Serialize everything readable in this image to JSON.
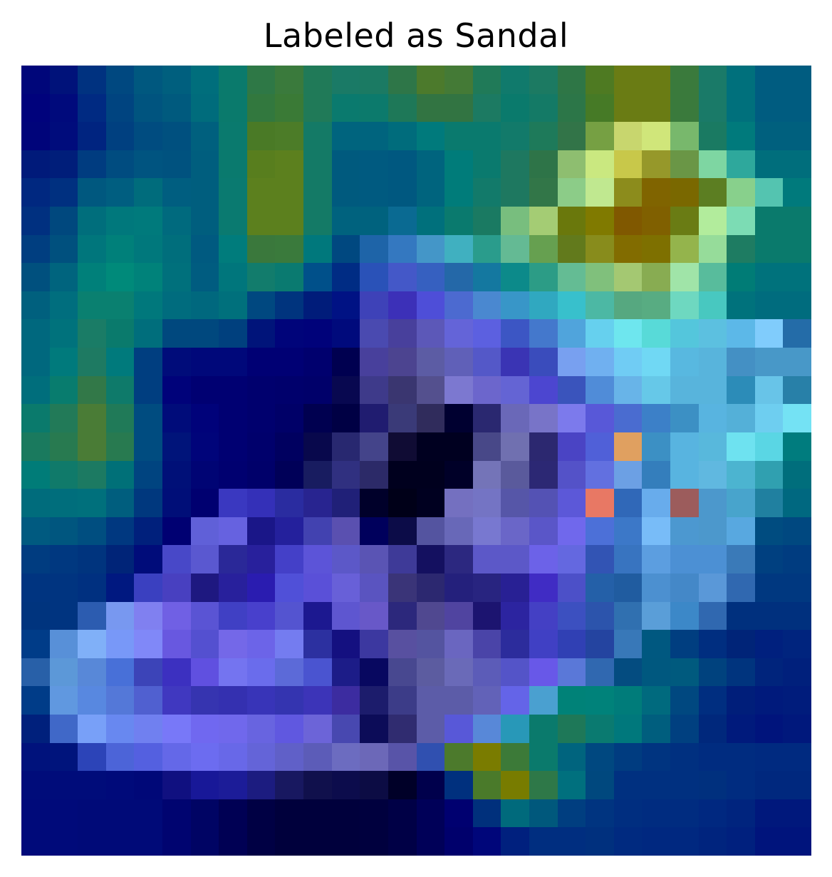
{
  "figure": {
    "title": "Labeled as Sandal",
    "image_description": "28x28 grayscale image overlaid with a saliency heatmap"
  },
  "heatmap": {
    "rows": 28,
    "cols": 28,
    "pixels": [
      [
        "#00067a",
        "#00127a",
        "#003280",
        "#004880",
        "#00587f",
        "#005f7e",
        "#006e7c",
        "#0a7a6c",
        "#2e7846",
        "#3a7a3c",
        "#207a58",
        "#1a7a66",
        "#1b7a63",
        "#2e7648",
        "#4c7a2c",
        "#447a36",
        "#207a58",
        "#107a6c",
        "#1c7a62",
        "#2e7646",
        "#4e7a22",
        "#6a7c14",
        "#6a7c14",
        "#3a7a3c",
        "#1a7a68",
        "#00707c",
        "#005c80",
        "#005c80"
      ],
      [
        "#00027c",
        "#000a7c",
        "#002a82",
        "#004480",
        "#00547f",
        "#005a7e",
        "#006c7c",
        "#0a7a6c",
        "#32783e",
        "#3a7a36",
        "#207a58",
        "#0a7a6e",
        "#0c7a6c",
        "#1e7858",
        "#327442",
        "#327442",
        "#1c7a62",
        "#0a7a6c",
        "#147a66",
        "#2c7648",
        "#467a26",
        "#6a7c14",
        "#6a7c14",
        "#3a7a3c",
        "#1a7a68",
        "#00707c",
        "#005c80",
        "#005c80"
      ],
      [
        "#00047a",
        "#000c7c",
        "#002480",
        "#004080",
        "#004c80",
        "#00507f",
        "#00607e",
        "#0a7a6e",
        "#4a7a26",
        "#4c7c28",
        "#147a66",
        "#00647e",
        "#00647e",
        "#006c7c",
        "#007a7c",
        "#0a7a6e",
        "#0a7a6e",
        "#127a6a",
        "#1e7a5a",
        "#327448",
        "#76a043",
        "#c8d66e",
        "#d0e67a",
        "#78b86c",
        "#1a7a62",
        "#007a7c",
        "#00607e",
        "#00607e"
      ],
      [
        "#001a7a",
        "#001e7a",
        "#003c80",
        "#004c80",
        "#005480",
        "#00527f",
        "#005e7e",
        "#0a7a6e",
        "#587e1e",
        "#5c801e",
        "#147a66",
        "#005a7e",
        "#005a80",
        "#005880",
        "#00647e",
        "#007c7a",
        "#0a7a6e",
        "#1e7860",
        "#2e7448",
        "#8ebe70",
        "#cae880",
        "#c8c84a",
        "#96982a",
        "#6a9646",
        "#7ed6a2",
        "#2ea89c",
        "#006e7c",
        "#006e7c"
      ],
      [
        "#002880",
        "#003080",
        "#00587f",
        "#005e80",
        "#006c7c",
        "#005e80",
        "#005e7e",
        "#0a7a70",
        "#5c801e",
        "#5c801e",
        "#147a66",
        "#005a7e",
        "#005a80",
        "#005880",
        "#00647e",
        "#007c7a",
        "#127a6a",
        "#1e7860",
        "#327648",
        "#8ccc88",
        "#c0e890",
        "#8c8c1c",
        "#806400",
        "#7a6800",
        "#5c7e22",
        "#88d08c",
        "#54c4b0",
        "#007a7c"
      ],
      [
        "#003080",
        "#00487e",
        "#006e7c",
        "#00787c",
        "#007a7c",
        "#006a7e",
        "#005e7e",
        "#0a7a70",
        "#5c801e",
        "#5c801e",
        "#147a66",
        "#00627e",
        "#00627e",
        "#0a6a92",
        "#00707c",
        "#0a7a6e",
        "#1a7a62",
        "#78be7e",
        "#a4cc74",
        "#6a780c",
        "#807a00",
        "#805800",
        "#806000",
        "#6a7c14",
        "#b2ec9c",
        "#7cdcb4",
        "#0a7a6c",
        "#0a7a6c"
      ],
      [
        "#003e80",
        "#00507e",
        "#00767c",
        "#00807a",
        "#00787c",
        "#006e7c",
        "#005a80",
        "#007c7c",
        "#3a783c",
        "#3a7a3c",
        "#00787c",
        "#004880",
        "#1e64a8",
        "#3478c0",
        "#4496c8",
        "#40b0c0",
        "#2a9c8c",
        "#64ba94",
        "#66a050",
        "#627a1c",
        "#888c1c",
        "#826c00",
        "#7e7000",
        "#94b44c",
        "#96dc9a",
        "#1e7c62",
        "#0a7a6c",
        "#0a7a6c"
      ],
      [
        "#00507e",
        "#00647e",
        "#00807a",
        "#008a7a",
        "#00827a",
        "#00707c",
        "#005c80",
        "#00767c",
        "#127c6c",
        "#0a7a70",
        "#00508a",
        "#002c84",
        "#2a52b8",
        "#4458c8",
        "#3660c0",
        "#2468a8",
        "#1478a0",
        "#0c8a8a",
        "#2c9c86",
        "#64bc94",
        "#80c07c",
        "#a4c872",
        "#88ac52",
        "#a0e4a8",
        "#58bc9c",
        "#007c76",
        "#00727c",
        "#00727c"
      ],
      [
        "#00607e",
        "#006e7e",
        "#0a8070",
        "#0a8070",
        "#00787c",
        "#006c7e",
        "#00687e",
        "#00707c",
        "#004880",
        "#00347e",
        "#001c7a",
        "#001284",
        "#3e42b8",
        "#3c30b8",
        "#4e4ed8",
        "#4c6ad0",
        "#4a88d0",
        "#3896c8",
        "#30a8c0",
        "#38c0cc",
        "#4cb8a4",
        "#56a880",
        "#58ac82",
        "#6ed8c0",
        "#48c8c0",
        "#00727c",
        "#006c7e",
        "#006c7e"
      ],
      [
        "#00687e",
        "#00727c",
        "#1a7c66",
        "#0a7a6c",
        "#006e7c",
        "#00487e",
        "#00487e",
        "#00407e",
        "#00147a",
        "#00047a",
        "#00027a",
        "#000a7c",
        "#4a4ab0",
        "#48409c",
        "#5c58b8",
        "#6464d8",
        "#5c60e0",
        "#3c56c4",
        "#4478cc",
        "#50a4dc",
        "#66d0ee",
        "#6ee6ee",
        "#58dad8",
        "#54c6dc",
        "#5cc0e0",
        "#5cb8e8",
        "#80ccfc",
        "#246ca8"
      ],
      [
        "#00687e",
        "#007a7c",
        "#1e7a62",
        "#007a7c",
        "#003e80",
        "#000c7a",
        "#00087a",
        "#00087a",
        "#000074",
        "#000074",
        "#00006e",
        "#000050",
        "#48409c",
        "#4c4490",
        "#5c5ca4",
        "#6060b8",
        "#5458c8",
        "#3a34b4",
        "#3a4cbc",
        "#78a0f0",
        "#70b0f0",
        "#70ccf4",
        "#70d8f4",
        "#58b8e0",
        "#58b4dc",
        "#4490c4",
        "#4898c8",
        "#4898c8"
      ],
      [
        "#006e7c",
        "#087c6e",
        "#327848",
        "#0e7a6a",
        "#003e80",
        "#00027a",
        "#000072",
        "#000072",
        "#00006e",
        "#00006c",
        "#00006a",
        "#080850",
        "#3e3a8a",
        "#3a3670",
        "#54508e",
        "#7c78d0",
        "#6c66cc",
        "#6464d4",
        "#4c46d0",
        "#3a54bc",
        "#508cd8",
        "#68b4e8",
        "#66c8e8",
        "#58b4dc",
        "#58b4dc",
        "#2c8cb8",
        "#68c4e8",
        "#2880a8"
      ],
      [
        "#0a7a6c",
        "#227a58",
        "#4a7c36",
        "#207a58",
        "#004c80",
        "#000c7a",
        "#00027a",
        "#000072",
        "#00006e",
        "#000068",
        "#000050",
        "#000044",
        "#201c70",
        "#3a3a78",
        "#302c5c",
        "#000030",
        "#2a2870",
        "#6a68b8",
        "#7874c8",
        "#7c7aec",
        "#5858d8",
        "#4a6cd0",
        "#3c80c8",
        "#3c90c4",
        "#58b4e0",
        "#54b0d8",
        "#6ecef0",
        "#74e2f4"
      ],
      [
        "#1a7a5e",
        "#287a50",
        "#4a7c36",
        "#287a50",
        "#004c80",
        "#00147a",
        "#00047a",
        "#000072",
        "#00006c",
        "#000060",
        "#08084c",
        "#282870",
        "#44448a",
        "#100c34",
        "#000020",
        "#000020",
        "#484888",
        "#7070b0",
        "#2c2870",
        "#4a44c4",
        "#5060d8",
        "#e0a060",
        "#3c90c4",
        "#58b4e0",
        "#58b8dc",
        "#6ee2f0",
        "#5ad6e4",
        "#007c7e"
      ],
      [
        "#007c78",
        "#107a6a",
        "#1c7a62",
        "#007078",
        "#004480",
        "#001078",
        "#000474",
        "#000070",
        "#00006a",
        "#000058",
        "#181c60",
        "#303080",
        "#2c2a68",
        "#00001e",
        "#00001e",
        "#000028",
        "#7474b8",
        "#5a5a9c",
        "#2c2874",
        "#5452c8",
        "#6270e0",
        "#6ca0e4",
        "#347ebc",
        "#58b4e0",
        "#60b8e0",
        "#4cb4d0",
        "#30a0b0",
        "#006e7c"
      ],
      [
        "#006c7c",
        "#006e7c",
        "#00707c",
        "#005e7e",
        "#00387e",
        "#000e78",
        "#000070",
        "#3a38c0",
        "#3430b8",
        "#2a2ca0",
        "#282490",
        "#202078",
        "#00002a",
        "#000018",
        "#000020",
        "#7470c0",
        "#7474c4",
        "#5656a8",
        "#5452b4",
        "#5c58d8",
        "#e87864",
        "#3068b8",
        "#68acec",
        "#9c5c5c",
        "#4c98cc",
        "#48a4cc",
        "#2080a0",
        "#006880"
      ],
      [
        "#005a80",
        "#00567f",
        "#004e80",
        "#003880",
        "#00207c",
        "#000072",
        "#6060d8",
        "#6662e0",
        "#1a1688",
        "#24209c",
        "#4242b0",
        "#5a50b0",
        "#00005c",
        "#0c0c48",
        "#5454a0",
        "#6868b8",
        "#7878d0",
        "#6a66c8",
        "#5a56c8",
        "#7068ec",
        "#4c70d8",
        "#3c78c8",
        "#78bcf8",
        "#4c98d0",
        "#4c98cc",
        "#58a8e0",
        "#004c80",
        "#004880"
      ],
      [
        "#003c80",
        "#003880",
        "#00347e",
        "#002478",
        "#000c7a",
        "#4848c8",
        "#5a58d0",
        "#2a2898",
        "#28209c",
        "#4440c8",
        "#5c54d8",
        "#5c58c8",
        "#5a54b4",
        "#3e3a98",
        "#141060",
        "#2c2880",
        "#5c58c8",
        "#5c58c8",
        "#6c62e8",
        "#6468e0",
        "#3254b4",
        "#3874c0",
        "#5c9ee0",
        "#4c90d4",
        "#4c90d4",
        "#3a7ab8",
        "#004080",
        "#003c80"
      ],
      [
        "#003480",
        "#003480",
        "#003080",
        "#001880",
        "#3a40c0",
        "#4840c0",
        "#1e1880",
        "#28209c",
        "#2a1cb0",
        "#5050d8",
        "#5a50d8",
        "#6860d8",
        "#5a54c0",
        "#3a3478",
        "#2c2870",
        "#24207c",
        "#282480",
        "#282094",
        "#402cc4",
        "#4c50c8",
        "#2460a8",
        "#205ca0",
        "#4c90d0",
        "#4488c8",
        "#5a98d8",
        "#3068b0",
        "#003880",
        "#003880"
      ],
      [
        "#00347e",
        "#003480",
        "#2c5cb0",
        "#7898f0",
        "#8080f0",
        "#7060e4",
        "#5a54d4",
        "#4040c4",
        "#4840cc",
        "#5454d0",
        "#1c1890",
        "#5e56d0",
        "#6858c8",
        "#2c287c",
        "#504890",
        "#5044a0",
        "#1c1470",
        "#2c24a0",
        "#4440c4",
        "#3c50c0",
        "#2c54ac",
        "#3070b0",
        "#5a9ed8",
        "#3c88c8",
        "#3068b0",
        "#00307e",
        "#00307e",
        "#00307e"
      ],
      [
        "#003c88",
        "#5890d8",
        "#80b0f8",
        "#7898f8",
        "#8088f8",
        "#6858e0",
        "#5450d0",
        "#7468e8",
        "#6c64e8",
        "#747cf0",
        "#2c30a0",
        "#141080",
        "#3c38a0",
        "#5850a0",
        "#5454a0",
        "#6a66c0",
        "#4a44a8",
        "#2c2c9c",
        "#4040c4",
        "#3040b4",
        "#2444a0",
        "#3878b8",
        "#005880",
        "#003e80",
        "#002e80",
        "#002478",
        "#00207e",
        "#00247e"
      ],
      [
        "#2860a8",
        "#5c98d8",
        "#5888d8",
        "#4870d8",
        "#3c44b8",
        "#3c30c0",
        "#6050e0",
        "#7474f0",
        "#6a6cec",
        "#5c6ad8",
        "#4a54d0",
        "#1c1c88",
        "#080860",
        "#484890",
        "#5c5ca0",
        "#6a6ab8",
        "#5c5cb8",
        "#5454c8",
        "#6858e8",
        "#5a78d8",
        "#3068b0",
        "#044c80",
        "#00587f",
        "#005a7e",
        "#00427e",
        "#00347e",
        "#00247c",
        "#00207c"
      ],
      [
        "#003c88",
        "#6098e0",
        "#5888e0",
        "#5478d8",
        "#5060d0",
        "#4038c0",
        "#3634b0",
        "#3430b0",
        "#3834b8",
        "#3434b0",
        "#3c34b8",
        "#3c2ca0",
        "#1c1c6c",
        "#3c3c88",
        "#5c5ca8",
        "#5c5ca8",
        "#6262b8",
        "#6464e8",
        "#4aa0d0",
        "#008278",
        "#00827a",
        "#007c7a",
        "#006a7e",
        "#004880",
        "#002e80",
        "#001e7a",
        "#001a7c",
        "#001c7c"
      ],
      [
        "#00207c",
        "#4068c8",
        "#78a0f8",
        "#6888f0",
        "#7080f0",
        "#7878f8",
        "#7068f0",
        "#7068ec",
        "#6864e0",
        "#6058e0",
        "#6c64d8",
        "#4848b0",
        "#0c0c58",
        "#302c70",
        "#5c5ca8",
        "#5858d8",
        "#5888d8",
        "#2898b8",
        "#0a7a6c",
        "#1e7858",
        "#0a7a70",
        "#00787c",
        "#005e7e",
        "#004080",
        "#00287c",
        "#001a7c",
        "#00147c",
        "#00187c"
      ],
      [
        "#00127c",
        "#00147c",
        "#2c44b8",
        "#4c64d8",
        "#5460e0",
        "#6468e8",
        "#6c6cf0",
        "#6868e8",
        "#6464d8",
        "#6060c8",
        "#5c5cb8",
        "#6c6cc0",
        "#6c68b8",
        "#5854a8",
        "#3050b0",
        "#4c7a2c",
        "#7a7c00",
        "#3c7a38",
        "#0a7a6c",
        "#00647e",
        "#004880",
        "#003c80",
        "#003480",
        "#003080",
        "#002c80",
        "#002c80",
        "#002a80",
        "#002a80"
      ],
      [
        "#000c7a",
        "#000c7a",
        "#000c7a",
        "#000a7a",
        "#000878",
        "#101080",
        "#181898",
        "#1c1c98",
        "#1c1c80",
        "#181860",
        "#10104c",
        "#0c0c4c",
        "#0c0c44",
        "#000028",
        "#00004c",
        "#00307e",
        "#4a7a2a",
        "#787c00",
        "#2e7848",
        "#00707e",
        "#00487e",
        "#003080",
        "#003080",
        "#003080",
        "#00307e",
        "#002c80",
        "#00287e",
        "#00287e"
      ],
      [
        "#000a7a",
        "#000a7a",
        "#000a78",
        "#000a78",
        "#000a78",
        "#000470",
        "#000464",
        "#000054",
        "#000044",
        "#00003c",
        "#00003c",
        "#00003c",
        "#00003e",
        "#000046",
        "#000058",
        "#000070",
        "#00307c",
        "#006a7c",
        "#00587c",
        "#003e80",
        "#003480",
        "#002e80",
        "#002c80",
        "#002c80",
        "#002880",
        "#00247e",
        "#00187c",
        "#00187c"
      ],
      [
        "#000a7a",
        "#000a7a",
        "#000a78",
        "#000a78",
        "#000a78",
        "#000470",
        "#000464",
        "#000054",
        "#000044",
        "#00003c",
        "#00003c",
        "#00003c",
        "#00003e",
        "#000046",
        "#000058",
        "#00006c",
        "#00067a",
        "#00207e",
        "#002e80",
        "#002e80",
        "#00307e",
        "#002a80",
        "#002880",
        "#002880",
        "#00247e",
        "#00207e",
        "#00147c",
        "#00147c"
      ]
    ]
  }
}
